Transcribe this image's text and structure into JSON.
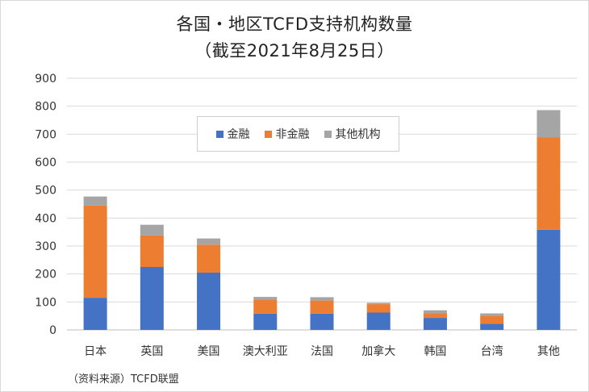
{
  "title_line1": "各国・地区TCFD支持机构数量",
  "title_line2": "（截至2021年8月25日）",
  "source": "（资料来源）TCFD联盟",
  "chart_data": {
    "type": "bar",
    "stacked": true,
    "title": "各国・地区TCFD支持机构数量（截至2021年8月25日）",
    "categories": [
      "日本",
      "英国",
      "美国",
      "澳大利亚",
      "法国",
      "加拿大",
      "韩国",
      "台湾",
      "其他"
    ],
    "series": [
      {
        "name": "金融",
        "color": "#4472c4",
        "values": [
          115,
          225,
          205,
          58,
          58,
          62,
          43,
          22,
          358
        ]
      },
      {
        "name": "非金融",
        "color": "#ed7d31",
        "values": [
          330,
          113,
          100,
          50,
          47,
          30,
          17,
          27,
          330
        ]
      },
      {
        "name": "其他机构",
        "color": "#a5a5a5",
        "values": [
          32,
          38,
          22,
          10,
          12,
          5,
          10,
          10,
          98
        ]
      }
    ],
    "ylim": [
      0,
      900
    ],
    "yticks": [
      0,
      100,
      200,
      300,
      400,
      500,
      600,
      700,
      800,
      900
    ],
    "grid": true,
    "legend_position": "top-center"
  }
}
